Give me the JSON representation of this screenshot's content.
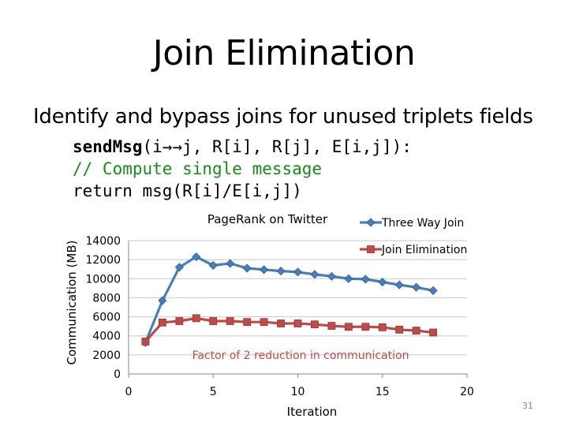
{
  "slide": {
    "title": "Join Elimination",
    "bullet": "Identify and bypass joins for unused triplets fields",
    "code": {
      "line1_fn": "sendMsg",
      "line1_rest": "(i→→j, R[i], R[j], E[i,j]):",
      "line2": "// Compute single message",
      "line3": "return msg(R[i]/E[i,j])"
    },
    "page_number": "31"
  },
  "chart_data": {
    "type": "line",
    "title": "PageRank on Twitter",
    "xlabel": "Iteration",
    "ylabel": "Communication (MB)",
    "xlim": [
      0,
      20
    ],
    "ylim": [
      0,
      14000
    ],
    "xticks": [
      0,
      5,
      10,
      15,
      20
    ],
    "yticks": [
      0,
      2000,
      4000,
      6000,
      8000,
      10000,
      12000,
      14000
    ],
    "grid": "horizontal",
    "legend_position": "top-right",
    "annotation": "Factor of 2 reduction in communication",
    "x": [
      1,
      2,
      3,
      4,
      5,
      6,
      7,
      8,
      9,
      10,
      11,
      12,
      13,
      14,
      15,
      16,
      17,
      18
    ],
    "series": [
      {
        "name": "Three Way Join",
        "color": "#4a7ebb",
        "marker": "diamond",
        "values": [
          3300,
          7700,
          11200,
          12300,
          11400,
          11600,
          11100,
          10950,
          10800,
          10700,
          10450,
          10250,
          10000,
          9950,
          9650,
          9350,
          9100,
          8750
        ]
      },
      {
        "name": "Join Elimination",
        "color": "#be4b48",
        "marker": "square",
        "values": [
          3400,
          5400,
          5550,
          5850,
          5550,
          5550,
          5450,
          5450,
          5300,
          5300,
          5200,
          5050,
          4950,
          4950,
          4900,
          4650,
          4550,
          4350
        ]
      }
    ]
  }
}
